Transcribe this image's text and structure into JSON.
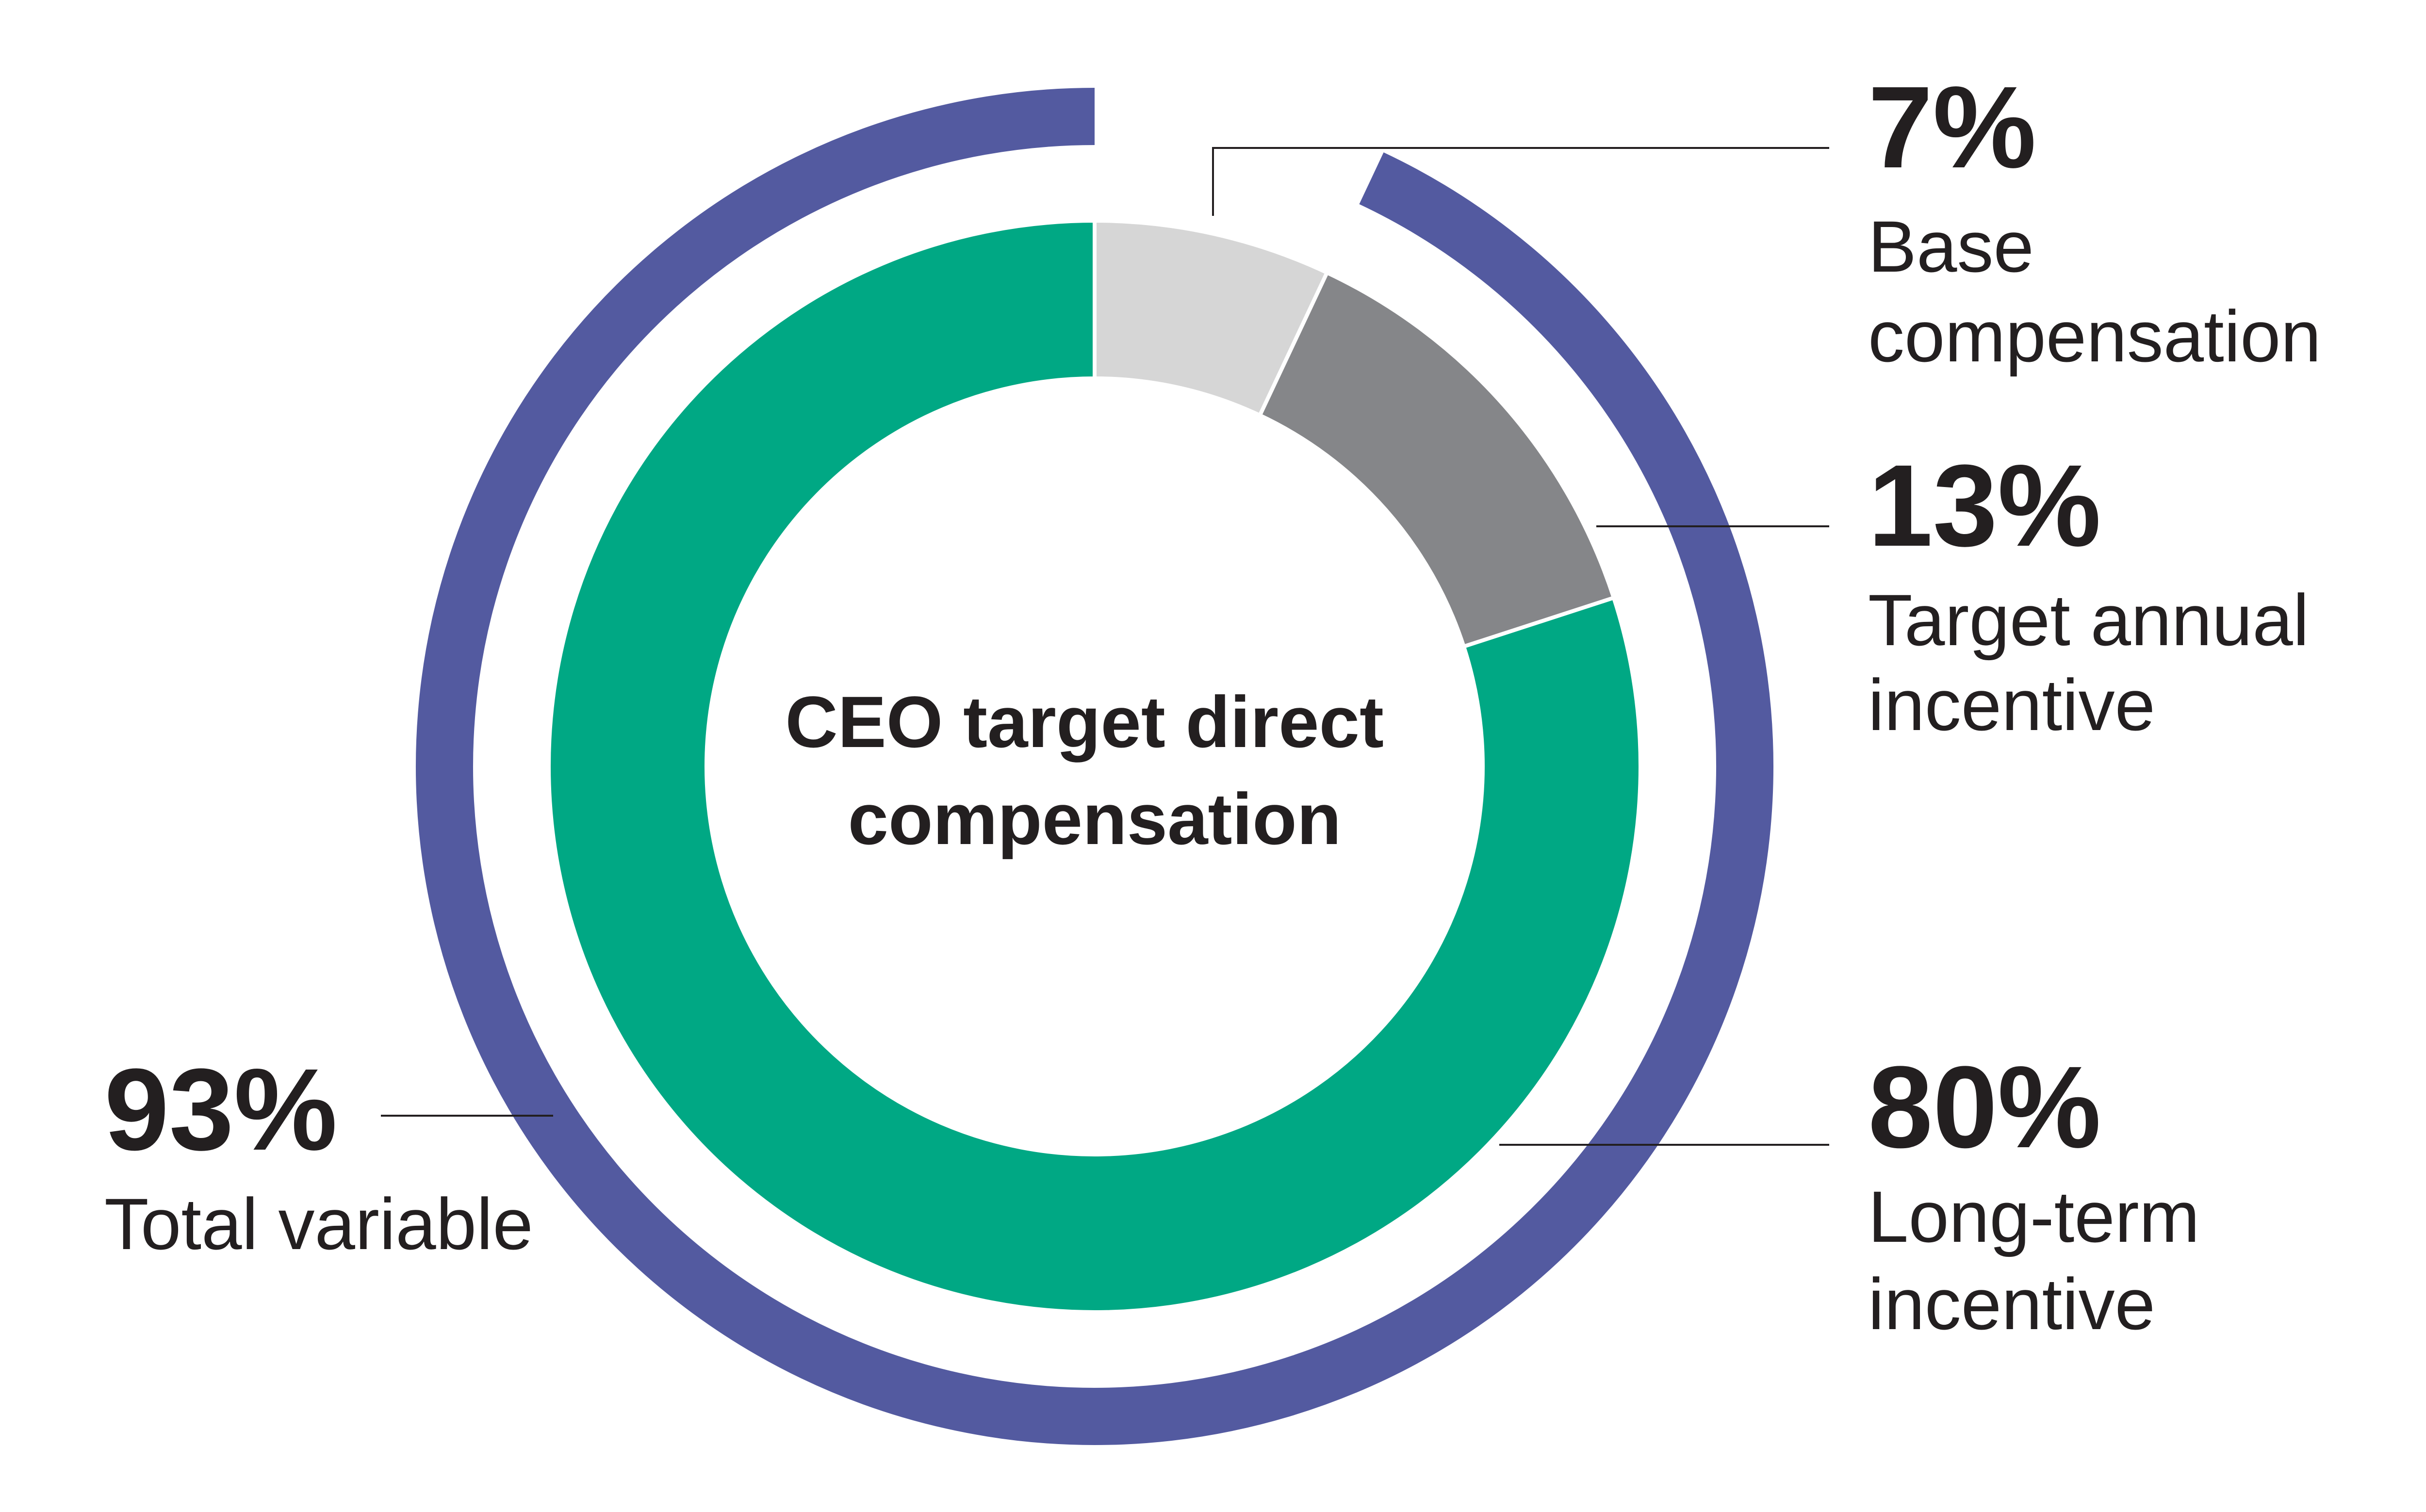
{
  "chart_data": {
    "type": "pie",
    "center_title": [
      "CEO target direct",
      "compensation"
    ],
    "series": [
      {
        "slices": [
          {
            "label": [
              "Base",
              "compensation"
            ],
            "value": 7,
            "value_label": "7%",
            "color": "#d6d6d6"
          },
          {
            "label": [
              "Target annual",
              "incentive"
            ],
            "value": 13,
            "value_label": "13%",
            "color": "#858689"
          },
          {
            "label": [
              "Long-term",
              "incentive"
            ],
            "value": 80,
            "value_label": "80%",
            "color": "#00a884"
          }
        ]
      }
    ],
    "outer_ring": {
      "label": [
        "Total variable"
      ],
      "value": 93,
      "value_label": "93%",
      "color": "#535aa0"
    },
    "legend": "none",
    "grid": false
  }
}
